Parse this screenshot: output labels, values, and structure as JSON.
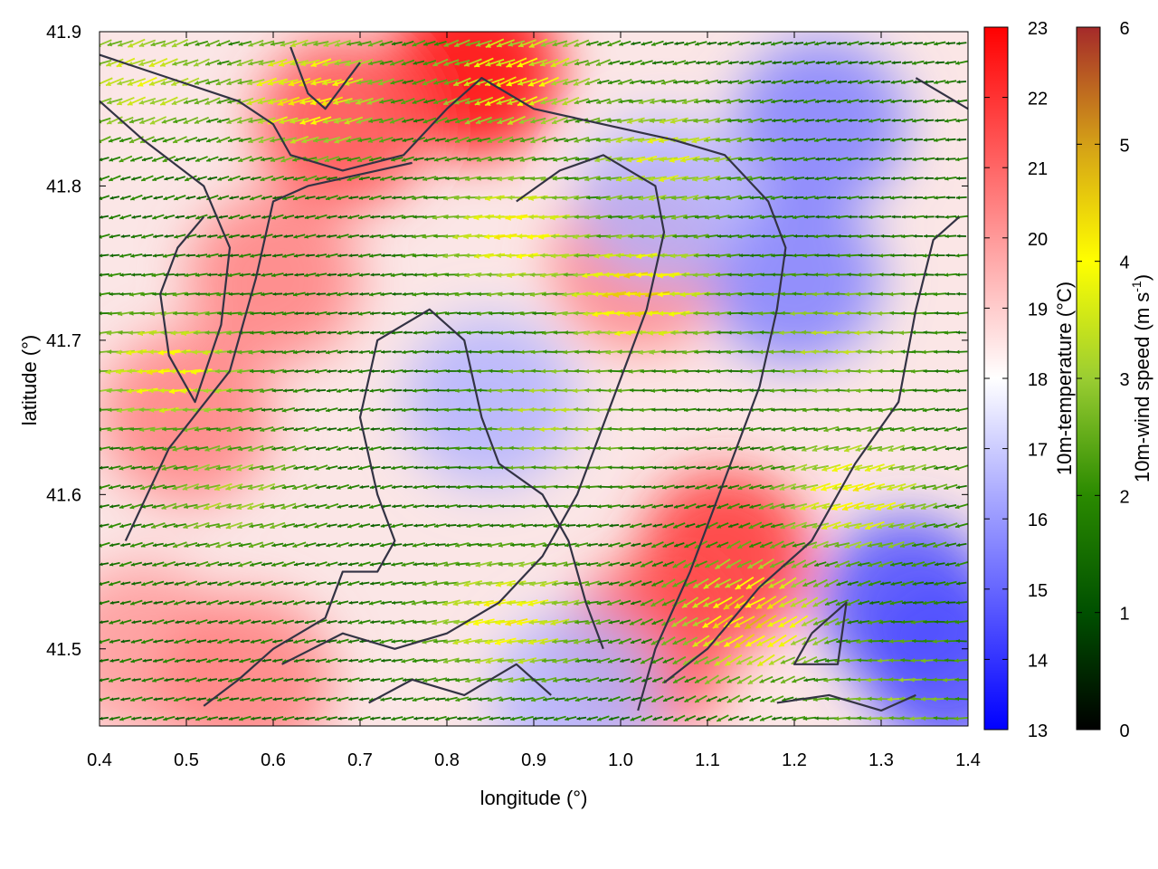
{
  "chart_data": {
    "type": "heatmap",
    "xlabel": "longitude (°)",
    "ylabel": "latitude (°)",
    "xlim": [
      0.4,
      1.4
    ],
    "ylim": [
      41.45,
      41.9
    ],
    "xticks": [
      0.4,
      0.5,
      0.6,
      0.7,
      0.8,
      0.9,
      1.0,
      1.1,
      1.2,
      1.3,
      1.4
    ],
    "xtick_labels": [
      "0.4",
      "0.5",
      "0.6",
      "0.7",
      "0.8",
      "0.9",
      "1.0",
      "1.1",
      "1.2",
      "1.3",
      "1.4"
    ],
    "yticks": [
      41.5,
      41.6,
      41.7,
      41.8,
      41.9
    ],
    "ytick_labels": [
      "41.5",
      "41.6",
      "41.7",
      "41.8",
      "41.9"
    ],
    "temperature_colorbar": {
      "label": "10m-temperature (°C)",
      "range": [
        13,
        23
      ],
      "ticks": [
        13,
        14,
        15,
        16,
        17,
        18,
        19,
        20,
        21,
        22,
        23
      ],
      "tick_labels": [
        "13",
        "14",
        "15",
        "16",
        "17",
        "18",
        "19",
        "20",
        "21",
        "22",
        "23"
      ],
      "colors": [
        "#0000ff",
        "#ffffff",
        "#ff0000"
      ]
    },
    "wind_colorbar": {
      "label": "10m-wind speed (m s",
      "label_sup": "-1",
      "label_end": ")",
      "range": [
        0,
        6
      ],
      "ticks": [
        0,
        1,
        2,
        3,
        4,
        5,
        6
      ],
      "tick_labels": [
        "0",
        "1",
        "2",
        "3",
        "4",
        "5",
        "6"
      ],
      "colors": [
        "#000000",
        "#005000",
        "#2a8a00",
        "#9acd32",
        "#ffff00",
        "#d4a017",
        "#a52a2a"
      ]
    },
    "temperature_hotspots": [
      {
        "lon": 0.83,
        "lat": 41.875,
        "temp": 23
      },
      {
        "lon": 0.68,
        "lat": 41.84,
        "temp": 21.5
      },
      {
        "lon": 0.6,
        "lat": 41.74,
        "temp": 20.5
      },
      {
        "lon": 0.5,
        "lat": 41.65,
        "temp": 20.5
      },
      {
        "lon": 1.12,
        "lat": 41.56,
        "temp": 22
      },
      {
        "lon": 1.03,
        "lat": 41.5,
        "temp": 21.5
      },
      {
        "lon": 1.02,
        "lat": 41.75,
        "temp": 20.5
      },
      {
        "lon": 0.45,
        "lat": 41.5,
        "temp": 20
      },
      {
        "lon": 0.25,
        "lat": 41.87,
        "temp": 20
      },
      {
        "lon": 0.57,
        "lat": 41.48,
        "temp": 20.5
      },
      {
        "lon": 1.23,
        "lat": 41.84,
        "temp": 15.5
      },
      {
        "lon": 1.2,
        "lat": 41.74,
        "temp": 15.5
      },
      {
        "lon": 1.33,
        "lat": 41.53,
        "temp": 14.5
      },
      {
        "lon": 0.85,
        "lat": 41.66,
        "temp": 16.5
      },
      {
        "lon": 1.05,
        "lat": 41.79,
        "temp": 16.5
      },
      {
        "lon": 1.38,
        "lat": 41.49,
        "temp": 14.5
      },
      {
        "lon": 0.95,
        "lat": 41.47,
        "temp": 16.5
      }
    ],
    "wind_hotspots": [
      {
        "lon": 0.64,
        "lat": 41.86,
        "speed": 4.2,
        "dir_deg": 195
      },
      {
        "lon": 0.88,
        "lat": 41.87,
        "speed": 4.0,
        "dir_deg": 200
      },
      {
        "lon": 0.48,
        "lat": 41.68,
        "speed": 4.0,
        "dir_deg": 185
      },
      {
        "lon": 0.88,
        "lat": 41.77,
        "speed": 4.0,
        "dir_deg": 185
      },
      {
        "lon": 1.02,
        "lat": 41.73,
        "speed": 4.5,
        "dir_deg": 185
      },
      {
        "lon": 0.87,
        "lat": 41.52,
        "speed": 4.0,
        "dir_deg": 190
      },
      {
        "lon": 1.15,
        "lat": 41.52,
        "speed": 4.5,
        "dir_deg": 210
      },
      {
        "lon": 1.27,
        "lat": 41.6,
        "speed": 4.0,
        "dir_deg": 195
      },
      {
        "lon": 1.05,
        "lat": 41.82,
        "speed": 3.6,
        "dir_deg": 190
      },
      {
        "lon": 0.92,
        "lat": 41.65,
        "speed": 3.2,
        "dir_deg": 180
      },
      {
        "lon": 1.25,
        "lat": 41.7,
        "speed": 3.2,
        "dir_deg": 180
      },
      {
        "lon": 0.55,
        "lat": 41.6,
        "speed": 3.0,
        "dir_deg": 195
      },
      {
        "lon": 0.45,
        "lat": 41.87,
        "speed": 3.5,
        "dir_deg": 200
      },
      {
        "lon": 1.32,
        "lat": 41.47,
        "speed": 2.8,
        "dir_deg": 180
      }
    ],
    "boundaries": [
      [
        [
          0.4,
          41.885
        ],
        [
          0.48,
          41.87
        ],
        [
          0.56,
          41.855
        ],
        [
          0.6,
          41.84
        ],
        [
          0.62,
          41.82
        ],
        [
          0.68,
          41.81
        ],
        [
          0.75,
          41.82
        ],
        [
          0.8,
          41.85
        ],
        [
          0.84,
          41.87
        ],
        [
          0.9,
          41.85
        ],
        [
          0.98,
          41.84
        ],
        [
          1.06,
          41.83
        ],
        [
          1.12,
          41.82
        ],
        [
          1.17,
          41.79
        ],
        [
          1.19,
          41.76
        ],
        [
          1.18,
          41.72
        ],
        [
          1.16,
          41.67
        ],
        [
          1.12,
          41.61
        ],
        [
          1.08,
          41.55
        ],
        [
          1.04,
          41.5
        ],
        [
          1.02,
          41.46
        ]
      ],
      [
        [
          0.4,
          41.855
        ],
        [
          0.45,
          41.83
        ],
        [
          0.52,
          41.8
        ],
        [
          0.55,
          41.76
        ],
        [
          0.54,
          41.71
        ],
        [
          0.51,
          41.66
        ],
        [
          0.48,
          41.69
        ],
        [
          0.47,
          41.73
        ],
        [
          0.49,
          41.76
        ],
        [
          0.52,
          41.78
        ]
      ],
      [
        [
          0.43,
          41.57
        ],
        [
          0.48,
          41.63
        ],
        [
          0.55,
          41.68
        ],
        [
          0.58,
          41.74
        ],
        [
          0.6,
          41.79
        ],
        [
          0.64,
          41.8
        ],
        [
          0.72,
          41.81
        ],
        [
          0.76,
          41.815
        ]
      ],
      [
        [
          0.52,
          41.463
        ],
        [
          0.56,
          41.48
        ],
        [
          0.6,
          41.5
        ],
        [
          0.66,
          41.52
        ],
        [
          0.68,
          41.55
        ],
        [
          0.72,
          41.55
        ],
        [
          0.74,
          41.57
        ],
        [
          0.72,
          41.6
        ],
        [
          0.7,
          41.65
        ],
        [
          0.72,
          41.7
        ],
        [
          0.78,
          41.72
        ],
        [
          0.82,
          41.7
        ],
        [
          0.84,
          41.65
        ],
        [
          0.86,
          41.62
        ],
        [
          0.91,
          41.6
        ],
        [
          0.94,
          41.57
        ],
        [
          0.96,
          41.53
        ],
        [
          0.98,
          41.5
        ]
      ],
      [
        [
          0.61,
          41.49
        ],
        [
          0.68,
          41.51
        ],
        [
          0.74,
          41.5
        ],
        [
          0.8,
          41.51
        ],
        [
          0.86,
          41.53
        ],
        [
          0.91,
          41.56
        ],
        [
          0.95,
          41.6
        ],
        [
          0.99,
          41.66
        ],
        [
          1.03,
          41.72
        ],
        [
          1.05,
          41.77
        ],
        [
          1.04,
          41.8
        ],
        [
          0.98,
          41.82
        ],
        [
          0.93,
          41.81
        ],
        [
          0.88,
          41.79
        ]
      ],
      [
        [
          0.71,
          41.465
        ],
        [
          0.76,
          41.48
        ],
        [
          0.82,
          41.47
        ],
        [
          0.88,
          41.49
        ],
        [
          0.92,
          41.47
        ]
      ],
      [
        [
          1.05,
          41.478
        ],
        [
          1.1,
          41.5
        ],
        [
          1.16,
          41.54
        ],
        [
          1.22,
          41.57
        ],
        [
          1.27,
          41.62
        ],
        [
          1.32,
          41.66
        ],
        [
          1.34,
          41.72
        ],
        [
          1.36,
          41.765
        ],
        [
          1.39,
          41.78
        ]
      ],
      [
        [
          1.22,
          41.51
        ],
        [
          1.26,
          41.53
        ],
        [
          1.25,
          41.49
        ],
        [
          1.2,
          41.49
        ],
        [
          1.22,
          41.51
        ]
      ],
      [
        [
          1.34,
          41.87
        ],
        [
          1.37,
          41.86
        ],
        [
          1.4,
          41.85
        ]
      ],
      [
        [
          0.62,
          41.89
        ],
        [
          0.64,
          41.86
        ],
        [
          0.66,
          41.85
        ],
        [
          0.7,
          41.88
        ]
      ],
      [
        [
          1.18,
          41.465
        ],
        [
          1.24,
          41.47
        ],
        [
          1.3,
          41.46
        ],
        [
          1.34,
          41.47
        ]
      ]
    ]
  }
}
